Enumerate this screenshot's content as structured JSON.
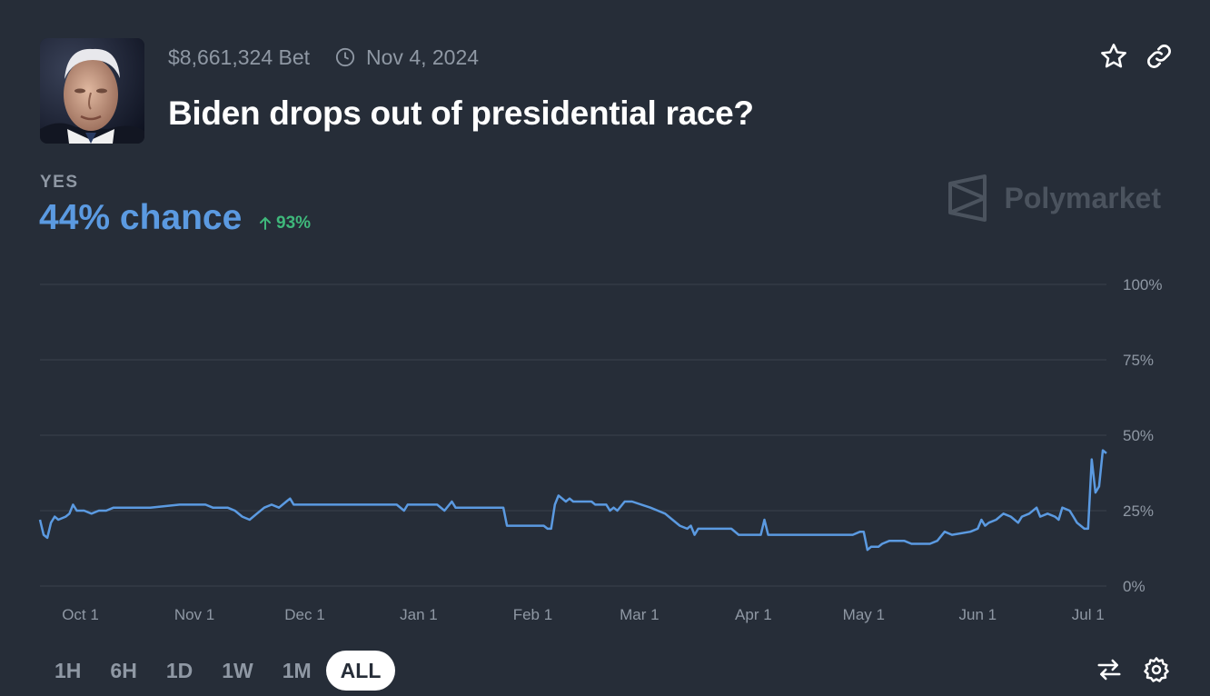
{
  "market": {
    "volume": "$8,661,324 Bet",
    "end_date": "Nov 4, 2024",
    "title": "Biden drops out of presidential race?",
    "outcome_label": "YES",
    "chance": "44% chance",
    "change": "93%",
    "brand": "Polymarket"
  },
  "icons": [
    "clock-icon",
    "star-icon",
    "link-icon",
    "arrow-up-icon",
    "swap-icon",
    "settings-icon",
    "polymarket-logo-icon"
  ],
  "colors": {
    "background": "#262d38",
    "line": "#5b9ae1",
    "positive": "#3fb87b",
    "muted": "#8f98a4"
  },
  "timeframes": {
    "items": [
      "1H",
      "6H",
      "1D",
      "1W",
      "1M",
      "ALL"
    ],
    "selected": "ALL"
  },
  "chart_data": {
    "type": "line",
    "ylim": [
      0,
      100
    ],
    "y_ticks": [
      "100%",
      "75%",
      "50%",
      "25%",
      "0%"
    ],
    "x_ticks": [
      "Oct 1",
      "Nov 1",
      "Dec 1",
      "Jan 1",
      "Feb 1",
      "Mar 1",
      "Apr 1",
      "May 1",
      "Jun 1",
      "Jul 1"
    ],
    "x_tick_dates": [
      "2023-10-01",
      "2023-11-01",
      "2023-12-01",
      "2024-01-01",
      "2024-02-01",
      "2024-03-01",
      "2024-04-01",
      "2024-05-01",
      "2024-06-01",
      "2024-07-01"
    ],
    "grid": true,
    "series": [
      {
        "values": [
          [
            "2023-09-20",
            22
          ],
          [
            "2023-09-21",
            17
          ],
          [
            "2023-09-22",
            16
          ],
          [
            "2023-09-23",
            21
          ],
          [
            "2023-09-24",
            23
          ],
          [
            "2023-09-25",
            22
          ],
          [
            "2023-09-27",
            23
          ],
          [
            "2023-09-28",
            24
          ],
          [
            "2023-09-29",
            27
          ],
          [
            "2023-09-30",
            25
          ],
          [
            "2023-10-02",
            25
          ],
          [
            "2023-10-04",
            24
          ],
          [
            "2023-10-06",
            25
          ],
          [
            "2023-10-08",
            25
          ],
          [
            "2023-10-10",
            26
          ],
          [
            "2023-10-20",
            26
          ],
          [
            "2023-10-28",
            27
          ],
          [
            "2023-11-04",
            27
          ],
          [
            "2023-11-06",
            26
          ],
          [
            "2023-11-10",
            26
          ],
          [
            "2023-11-12",
            25
          ],
          [
            "2023-11-14",
            23
          ],
          [
            "2023-11-16",
            22
          ],
          [
            "2023-11-18",
            24
          ],
          [
            "2023-11-20",
            26
          ],
          [
            "2023-11-22",
            27
          ],
          [
            "2023-11-24",
            26
          ],
          [
            "2023-11-26",
            28
          ],
          [
            "2023-11-27",
            29
          ],
          [
            "2023-11-28",
            27
          ],
          [
            "2023-12-10",
            27
          ],
          [
            "2023-12-16",
            27
          ],
          [
            "2023-12-26",
            27
          ],
          [
            "2023-12-28",
            25
          ],
          [
            "2023-12-29",
            27
          ],
          [
            "2024-01-02",
            27
          ],
          [
            "2024-01-06",
            27
          ],
          [
            "2024-01-08",
            25
          ],
          [
            "2024-01-10",
            28
          ],
          [
            "2024-01-11",
            26
          ],
          [
            "2024-01-20",
            26
          ],
          [
            "2024-01-24",
            26
          ],
          [
            "2024-01-25",
            20
          ],
          [
            "2024-01-26",
            20
          ],
          [
            "2024-02-03",
            20
          ],
          [
            "2024-02-04",
            20
          ],
          [
            "2024-02-05",
            19
          ],
          [
            "2024-02-06",
            19
          ],
          [
            "2024-02-07",
            27
          ],
          [
            "2024-02-08",
            30
          ],
          [
            "2024-02-09",
            29
          ],
          [
            "2024-02-10",
            28
          ],
          [
            "2024-02-11",
            29
          ],
          [
            "2024-02-12",
            28
          ],
          [
            "2024-02-17",
            28
          ],
          [
            "2024-02-18",
            27
          ],
          [
            "2024-02-21",
            27
          ],
          [
            "2024-02-22",
            25
          ],
          [
            "2024-02-23",
            26
          ],
          [
            "2024-02-24",
            25
          ],
          [
            "2024-02-26",
            28
          ],
          [
            "2024-02-28",
            28
          ],
          [
            "2024-03-04",
            26
          ],
          [
            "2024-03-06",
            25
          ],
          [
            "2024-03-08",
            24
          ],
          [
            "2024-03-10",
            22
          ],
          [
            "2024-03-12",
            20
          ],
          [
            "2024-03-14",
            19
          ],
          [
            "2024-03-15",
            20
          ],
          [
            "2024-03-16",
            17
          ],
          [
            "2024-03-17",
            19
          ],
          [
            "2024-03-26",
            19
          ],
          [
            "2024-03-28",
            17
          ],
          [
            "2024-04-01",
            17
          ],
          [
            "2024-04-02",
            17
          ],
          [
            "2024-04-03",
            17
          ],
          [
            "2024-04-04",
            22
          ],
          [
            "2024-04-05",
            17
          ],
          [
            "2024-04-08",
            17
          ],
          [
            "2024-04-20",
            17
          ],
          [
            "2024-04-28",
            17
          ],
          [
            "2024-04-30",
            18
          ],
          [
            "2024-05-01",
            18
          ],
          [
            "2024-05-02",
            12
          ],
          [
            "2024-05-03",
            13
          ],
          [
            "2024-05-05",
            13
          ],
          [
            "2024-05-06",
            14
          ],
          [
            "2024-05-08",
            15
          ],
          [
            "2024-05-12",
            15
          ],
          [
            "2024-05-14",
            14
          ],
          [
            "2024-05-19",
            14
          ],
          [
            "2024-05-21",
            15
          ],
          [
            "2024-05-23",
            18
          ],
          [
            "2024-05-25",
            17
          ],
          [
            "2024-05-30",
            18
          ],
          [
            "2024-06-01",
            19
          ],
          [
            "2024-06-02",
            22
          ],
          [
            "2024-06-03",
            20
          ],
          [
            "2024-06-04",
            21
          ],
          [
            "2024-06-06",
            22
          ],
          [
            "2024-06-08",
            24
          ],
          [
            "2024-06-10",
            23
          ],
          [
            "2024-06-12",
            21
          ],
          [
            "2024-06-13",
            23
          ],
          [
            "2024-06-15",
            24
          ],
          [
            "2024-06-17",
            26
          ],
          [
            "2024-06-18",
            23
          ],
          [
            "2024-06-20",
            24
          ],
          [
            "2024-06-22",
            23
          ],
          [
            "2024-06-23",
            22
          ],
          [
            "2024-06-24",
            26
          ],
          [
            "2024-06-26",
            25
          ],
          [
            "2024-06-27",
            23
          ],
          [
            "2024-06-28",
            21
          ],
          [
            "2024-06-29",
            20
          ],
          [
            "2024-06-30",
            19
          ],
          [
            "2024-07-01",
            19
          ],
          [
            "2024-07-02",
            42
          ],
          [
            "2024-07-03",
            31
          ],
          [
            "2024-07-04",
            33
          ],
          [
            "2024-07-05",
            45
          ],
          [
            "2024-07-06",
            44
          ]
        ]
      }
    ]
  }
}
